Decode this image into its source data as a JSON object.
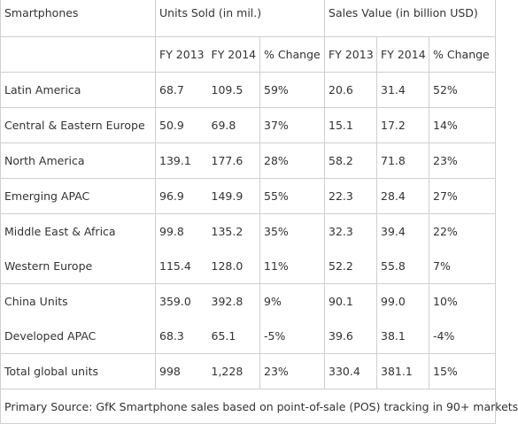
{
  "header": {
    "category_label": "Smartphones",
    "units_group": "Units Sold (in mil.)",
    "sales_group": "Sales Value (in billion USD)",
    "col_fy2013": "FY 2013",
    "col_fy2014": "FY 2014",
    "col_change": "% Change"
  },
  "rows": [
    {
      "region": "Latin America",
      "u13": "68.7",
      "u14": "109.5",
      "uchg": "59%",
      "s13": "20.6",
      "s14": "31.4",
      "schg": "52%"
    },
    {
      "region": "Central & Eastern Europe",
      "u13": "50.9",
      "u14": "69.8",
      "uchg": "37%",
      "s13": "15.1",
      "s14": "17.2",
      "schg": "14%"
    },
    {
      "region": "North America",
      "u13": "139.1",
      "u14": "177.6",
      "uchg": "28%",
      "s13": "58.2",
      "s14": "71.8",
      "schg": "23%"
    },
    {
      "region": "Emerging APAC",
      "u13": "96.9",
      "u14": "149.9",
      "uchg": "55%",
      "s13": "22.3",
      "s14": "28.4",
      "schg": "27%"
    },
    {
      "region": "Middle East & Africa",
      "u13": "99.8",
      "u14": "135.2",
      "uchg": "35%",
      "s13": "32.3",
      "s14": "39.4",
      "schg": "22%"
    },
    {
      "region": "Western Europe",
      "u13": "115.4",
      "u14": "128.0",
      "uchg": "11%",
      "s13": "52.2",
      "s14": "55.8",
      "schg": "7%"
    },
    {
      "region": "China Units",
      "u13": "359.0",
      "u14": "392.8",
      "uchg": "9%",
      "s13": "90.1",
      "s14": "99.0",
      "schg": "10%"
    },
    {
      "region": "Developed APAC",
      "u13": "68.3",
      "u14": "65.1",
      "uchg": "-5%",
      "s13": "39.6",
      "s14": "38.1",
      "schg": "-4%"
    },
    {
      "region": "Total global units",
      "u13": "998",
      "u14": "1,228",
      "uchg": "23%",
      "s13": "330.4",
      "s14": "381.1",
      "schg": "15%"
    }
  ],
  "footer": {
    "source": "Primary Source: GfK Smartphone sales based on point-of-sale (POS) tracking in 90+ markets"
  }
}
